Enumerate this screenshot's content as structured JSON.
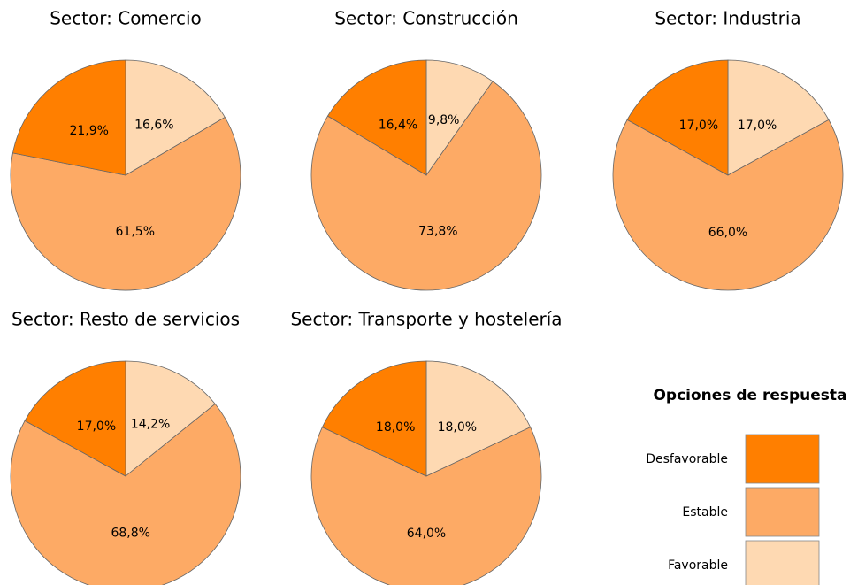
{
  "chart_data": [
    {
      "type": "pie",
      "title": "Sector: Comercio",
      "values": [
        21.9,
        61.5,
        16.6
      ],
      "value_labels": [
        "21,9%",
        "61,5%",
        "16,6%"
      ]
    },
    {
      "type": "pie",
      "title": "Sector: Construcción",
      "values": [
        16.4,
        73.8,
        9.8
      ],
      "value_labels": [
        "16,4%",
        "73,8%",
        "9,8%"
      ]
    },
    {
      "type": "pie",
      "title": "Sector: Industria",
      "values": [
        17.0,
        66.0,
        17.0
      ],
      "value_labels": [
        "17,0%",
        "66,0%",
        "17,0%"
      ]
    },
    {
      "type": "pie",
      "title": "Sector: Resto de servicios",
      "values": [
        17.0,
        68.8,
        14.2
      ],
      "value_labels": [
        "17,0%",
        "68,8%",
        "14,2%"
      ]
    },
    {
      "type": "pie",
      "title": "Sector: Transporte y hostelería",
      "values": [
        18.0,
        64.0,
        18.0
      ],
      "value_labels": [
        "18,0%",
        "64,0%",
        "18,0%"
      ]
    }
  ],
  "legend": {
    "title": "Opciones de respuesta",
    "entries": [
      {
        "name": "Desfavorable",
        "color": "#ff7f00"
      },
      {
        "name": "Estable",
        "color": "#fdaa65"
      },
      {
        "name": "Favorable",
        "color": "#fed9b2"
      }
    ]
  }
}
